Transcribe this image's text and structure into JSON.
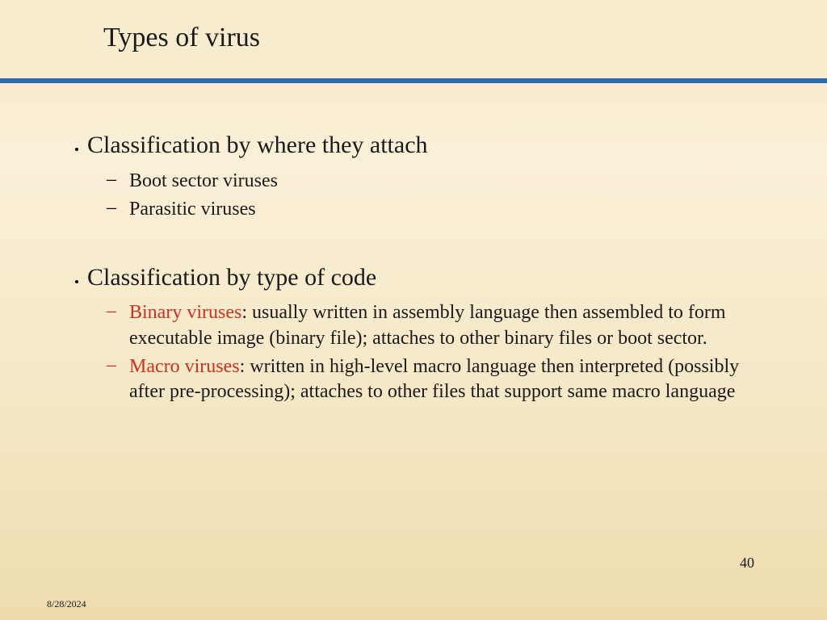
{
  "slide": {
    "title": "Types of virus",
    "page_number": "40",
    "date": "8/28/2024"
  },
  "content": {
    "section1": {
      "heading": "Classification by where they attach",
      "items": [
        {
          "text": "Boot sector viruses"
        },
        {
          "text": "Parasitic viruses"
        }
      ]
    },
    "section2": {
      "heading": "Classification by type of code",
      "items": [
        {
          "highlight": "Binary viruses",
          "rest": ": usually written in assembly language then assembled to form executable image (binary file); attaches to other binary files or boot sector."
        },
        {
          "highlight": "Macro viruses",
          "rest": ": written in high-level macro language then interpreted (possibly after pre-processing); attaches to other files that support same macro language"
        }
      ]
    }
  },
  "colors": {
    "divider": "#2a6cb3",
    "highlight": "#d12f1f",
    "text": "#1a1a1a"
  }
}
